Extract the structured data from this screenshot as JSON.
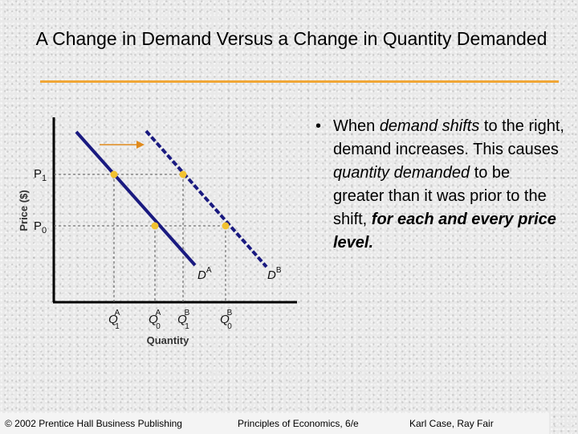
{
  "title": "A Change in Demand Versus a Change in Quantity Demanded",
  "graph": {
    "y_axis_label": "Price ($)",
    "x_axis_label": "Quantity",
    "price_labels": [
      {
        "main": "P",
        "sub": "1"
      },
      {
        "main": "P",
        "sub": "0"
      }
    ],
    "quantity_labels": [
      {
        "main": "Q",
        "sup": "A",
        "sub": "1"
      },
      {
        "main": "Q",
        "sup": "A",
        "sub": "0"
      },
      {
        "main": "Q",
        "sup": "B",
        "sub": "1"
      },
      {
        "main": "Q",
        "sup": "B",
        "sub": "0"
      }
    ],
    "curves": [
      {
        "main": "D",
        "sup": "A",
        "style": "solid"
      },
      {
        "main": "D",
        "sup": "B",
        "style": "dashed"
      }
    ],
    "colors": {
      "curve": "#1a1a80",
      "point": "#f2c230",
      "arrow": "#e08a1c",
      "axis": "#000000"
    }
  },
  "bullet": {
    "marker": "•",
    "text_1": "When ",
    "italic_1": "demand shifts",
    "text_2": " to the right, demand increases. This causes ",
    "italic_2": "quantity demanded",
    "text_3": " to be greater than it was prior to the shift, ",
    "bold_italic": "for each and every price level."
  },
  "footer": {
    "copyright": "© 2002 Prentice Hall Business Publishing",
    "book": "Principles of Economics, 6/e",
    "authors": "Karl Case, Ray Fair"
  }
}
